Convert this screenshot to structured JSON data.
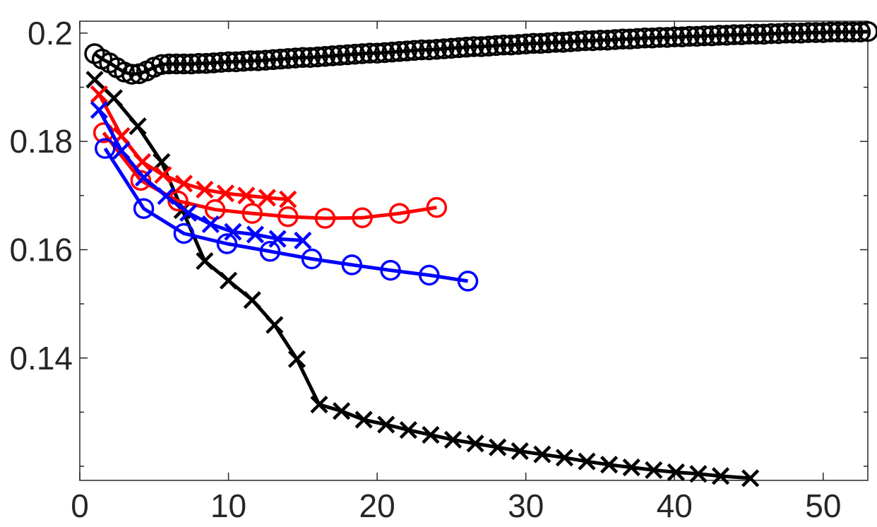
{
  "chart_data": {
    "type": "line",
    "title": "",
    "xlabel": "",
    "ylabel": "",
    "xlim": [
      0,
      53
    ],
    "ylim": [
      0.1174,
      0.2022
    ],
    "x_ticks": [
      0,
      10,
      20,
      30,
      40,
      50
    ],
    "x_tick_labels": [
      "0",
      "10",
      "20",
      "30",
      "40",
      "50"
    ],
    "y_ticks": [
      0.14,
      0.16,
      0.18,
      0.2
    ],
    "y_tick_labels": [
      "0.14",
      "0.16",
      "0.18",
      "0.2"
    ],
    "y_minor_ticks": [
      0.12,
      0.13,
      0.15,
      0.17,
      0.19
    ],
    "grid": false,
    "series": [
      {
        "marker": "o",
        "color": "#000000",
        "x": [
          1,
          1.5,
          2,
          2.5,
          3,
          3.5,
          4,
          4.5,
          5,
          5.5,
          6,
          6.5,
          7,
          7.5,
          8,
          8.5,
          9,
          9.5,
          10,
          10.5,
          11,
          11.5,
          12,
          12.5,
          13,
          13.5,
          14,
          14.5,
          15,
          15.5,
          16,
          16.5,
          17,
          17.5,
          18,
          18.5,
          19,
          19.5,
          20,
          20.5,
          21,
          21.5,
          22,
          22.5,
          23,
          23.5,
          24,
          24.5,
          25,
          25.5,
          26,
          26.5,
          27,
          27.5,
          28,
          28.5,
          29,
          29.5,
          30,
          30.5,
          31,
          31.5,
          32,
          32.5,
          33,
          33.5,
          34,
          34.5,
          35,
          35.5,
          36,
          36.5,
          37,
          37.5,
          38,
          38.5,
          39,
          39.5,
          40,
          40.5,
          41,
          41.5,
          42,
          42.5,
          43,
          43.5,
          44,
          44.5,
          45,
          45.5,
          46,
          46.5,
          47,
          47.5,
          48,
          48.5,
          49,
          49.5,
          50,
          50.5,
          51,
          51.5,
          52,
          52.5,
          53
        ],
        "y": [
          0.1962,
          0.1952,
          0.1945,
          0.1936,
          0.1928,
          0.1924,
          0.1925,
          0.193,
          0.1937,
          0.1942,
          0.1943,
          0.1943,
          0.1943,
          0.1943,
          0.1944,
          0.1944,
          0.1945,
          0.1946,
          0.1947,
          0.1947,
          0.1948,
          0.1949,
          0.1949,
          0.195,
          0.1951,
          0.1952,
          0.1953,
          0.1954,
          0.1955,
          0.1955,
          0.1956,
          0.1957,
          0.1958,
          0.1959,
          0.196,
          0.1961,
          0.1962,
          0.1963,
          0.1963,
          0.1964,
          0.1965,
          0.1966,
          0.1967,
          0.1968,
          0.1969,
          0.1969,
          0.197,
          0.1971,
          0.1972,
          0.1973,
          0.1974,
          0.1975,
          0.1975,
          0.1976,
          0.1977,
          0.1978,
          0.1978,
          0.1979,
          0.198,
          0.1981,
          0.1981,
          0.1982,
          0.1983,
          0.1983,
          0.1984,
          0.1985,
          0.1986,
          0.1986,
          0.1987,
          0.1987,
          0.1988,
          0.1989,
          0.1989,
          0.199,
          0.1991,
          0.1991,
          0.1992,
          0.1992,
          0.1993,
          0.1993,
          0.1994,
          0.1994,
          0.1995,
          0.1995,
          0.1996,
          0.1996,
          0.1997,
          0.1997,
          0.1998,
          0.1998,
          0.1998,
          0.1999,
          0.1999,
          0.2,
          0.2,
          0.2,
          0.2001,
          0.2001,
          0.2001,
          0.2002,
          0.2002,
          0.2002,
          0.2002,
          0.2002,
          0.2003
        ]
      },
      {
        "marker": "x",
        "color": "#000000",
        "x": [
          1,
          2.3,
          3.9,
          5.5,
          6.9,
          8.4,
          10,
          11.6,
          13.1,
          14.6,
          16.1,
          17.6,
          19.1,
          20.6,
          22.1,
          23.6,
          25.1,
          26.6,
          28.1,
          29.6,
          31.1,
          32.6,
          34.1,
          35.6,
          37.1,
          38.6,
          40.1,
          41.6,
          43.1,
          45.1
        ],
        "y": [
          0.1914,
          0.188,
          0.1828,
          0.1762,
          0.1673,
          0.1579,
          0.1543,
          0.1507,
          0.1461,
          0.1398,
          0.1314,
          0.1302,
          0.1286,
          0.1277,
          0.1267,
          0.1258,
          0.1249,
          0.1242,
          0.1235,
          0.1228,
          0.1222,
          0.1216,
          0.1209,
          0.1203,
          0.1198,
          0.1193,
          0.1189,
          0.1186,
          0.1182,
          0.1178
        ]
      },
      {
        "marker": "o",
        "color": "#ff0000",
        "x": [
          1.6,
          4.1,
          6.6,
          9.1,
          11.6,
          14,
          16.5,
          19,
          21.5,
          24
        ],
        "y": [
          0.1816,
          0.1728,
          0.169,
          0.1674,
          0.1667,
          0.1661,
          0.1658,
          0.1659,
          0.1667,
          0.1678
        ]
      },
      {
        "marker": "x",
        "color": "#ff0000",
        "x": [
          1.3,
          2.8,
          4.2,
          5.6,
          7,
          8.4,
          9.8,
          11.2,
          12.6,
          14
        ],
        "y": [
          0.1887,
          0.181,
          0.1762,
          0.1738,
          0.1722,
          0.1711,
          0.1704,
          0.17,
          0.1696,
          0.1693
        ]
      },
      {
        "marker": "o",
        "color": "#0000ff",
        "x": [
          1.7,
          4.3,
          7,
          9.9,
          12.8,
          15.6,
          18.3,
          20.9,
          23.5,
          26.1
        ],
        "y": [
          0.1787,
          0.1676,
          0.163,
          0.1611,
          0.1597,
          0.1583,
          0.1572,
          0.1562,
          0.1553,
          0.1542
        ]
      },
      {
        "marker": "x",
        "color": "#0000ff",
        "x": [
          1.3,
          2.8,
          4.3,
          5.8,
          7.3,
          8.8,
          10.3,
          11.8,
          13.3,
          15
        ],
        "y": [
          0.1858,
          0.1783,
          0.1733,
          0.1699,
          0.1668,
          0.1647,
          0.1633,
          0.1628,
          0.162,
          0.1617
        ]
      }
    ]
  }
}
